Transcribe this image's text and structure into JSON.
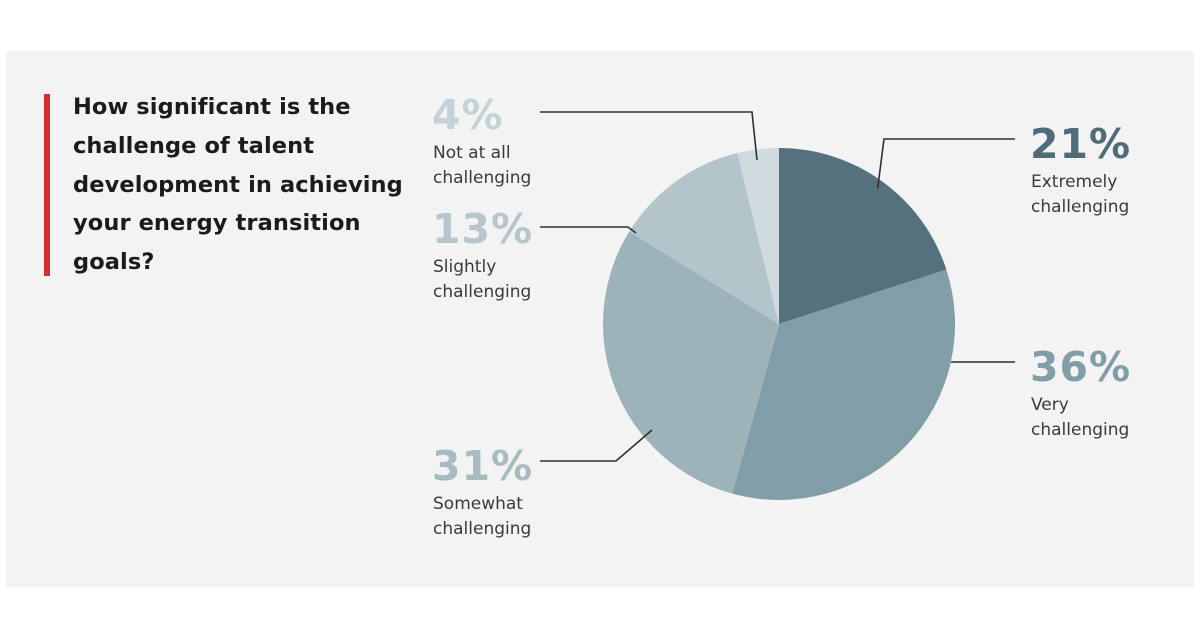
{
  "question": "How significant is the challenge of talent development in achieving your energy transition goals?",
  "colors": {
    "accent": "#d32f2f",
    "panel": "#f3f3f3",
    "callout_line": "#2f2f2f",
    "pct_dark": "#4f6c78",
    "pct_light": "#b9c9cf"
  },
  "chart_data": {
    "type": "pie",
    "title": "How significant is the challenge of talent development in achieving your energy transition goals?",
    "slices": [
      {
        "label": "Extremely challenging",
        "label_lines": [
          "Extremely",
          "challenging"
        ],
        "value": 21,
        "display": "21%",
        "color": "#55717d",
        "pct_color": "#4f6c78"
      },
      {
        "label": "Very challenging",
        "label_lines": [
          "Very",
          "challenging"
        ],
        "value": 36,
        "display": "36%",
        "color": "#819ea8",
        "pct_color": "#819ea8"
      },
      {
        "label": "Somewhat challenging",
        "label_lines": [
          "Somewhat",
          "challenging"
        ],
        "value": 31,
        "display": "31%",
        "color": "#9db3ba",
        "pct_color": "#a7bbc1"
      },
      {
        "label": "Slightly challenging",
        "label_lines": [
          "Slightly",
          "challenging"
        ],
        "value": 13,
        "display": "13%",
        "color": "#b3c4ca",
        "pct_color": "#b6c6cc"
      },
      {
        "label": "Not at all challenging",
        "label_lines": [
          "Not at all",
          "challenging"
        ],
        "value": 4,
        "display": "4%",
        "color": "#cfdbdf",
        "pct_color": "#c3d2d7"
      }
    ]
  }
}
